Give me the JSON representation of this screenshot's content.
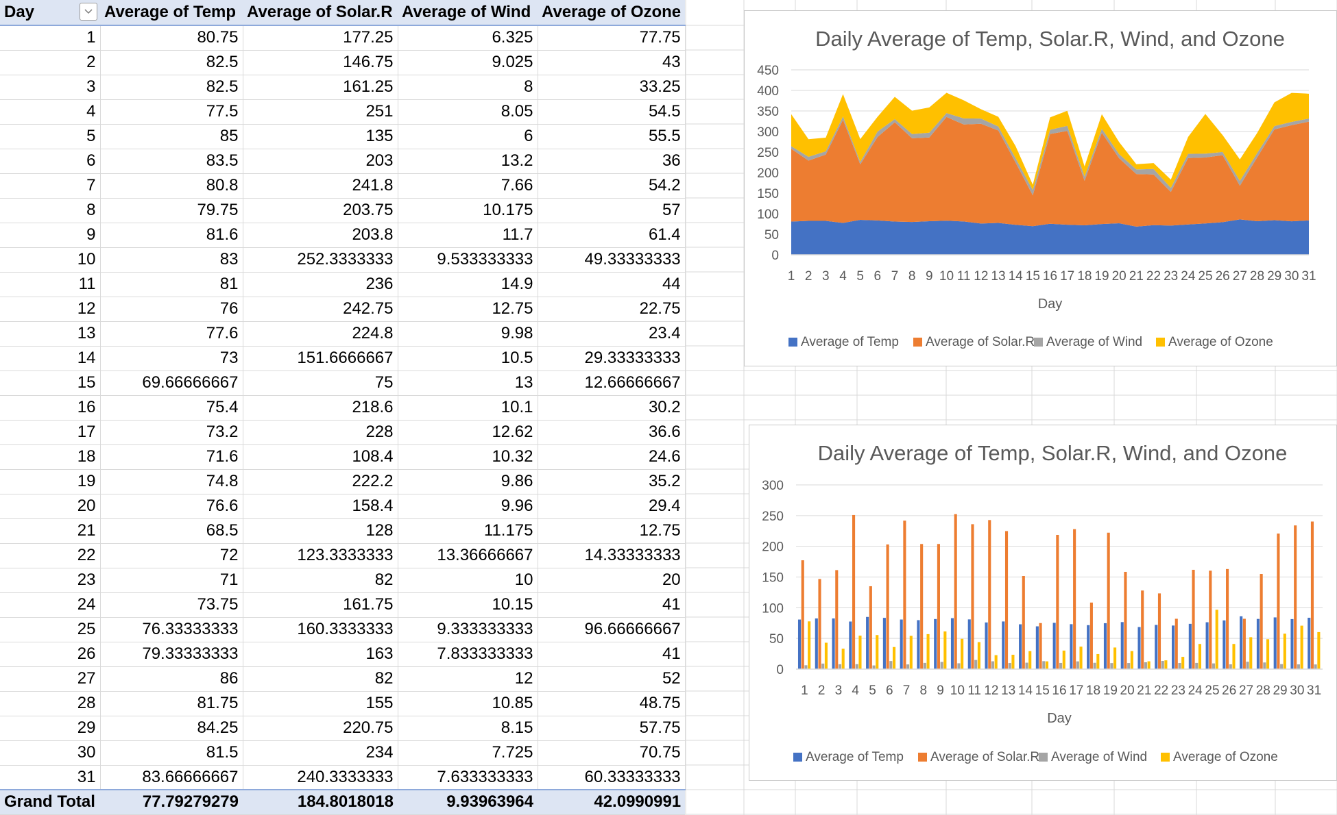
{
  "table": {
    "headers": [
      "Day",
      "Average of Temp",
      "Average of Solar.R",
      "Average of Wind",
      "Average of Ozone"
    ],
    "rows": [
      [
        "1",
        "80.75",
        "177.25",
        "6.325",
        "77.75"
      ],
      [
        "2",
        "82.5",
        "146.75",
        "9.025",
        "43"
      ],
      [
        "3",
        "82.5",
        "161.25",
        "8",
        "33.25"
      ],
      [
        "4",
        "77.5",
        "251",
        "8.05",
        "54.5"
      ],
      [
        "5",
        "85",
        "135",
        "6",
        "55.5"
      ],
      [
        "6",
        "83.5",
        "203",
        "13.2",
        "36"
      ],
      [
        "7",
        "80.8",
        "241.8",
        "7.66",
        "54.2"
      ],
      [
        "8",
        "79.75",
        "203.75",
        "10.175",
        "57"
      ],
      [
        "9",
        "81.6",
        "203.8",
        "11.7",
        "61.4"
      ],
      [
        "10",
        "83",
        "252.3333333",
        "9.533333333",
        "49.33333333"
      ],
      [
        "11",
        "81",
        "236",
        "14.9",
        "44"
      ],
      [
        "12",
        "76",
        "242.75",
        "12.75",
        "22.75"
      ],
      [
        "13",
        "77.6",
        "224.8",
        "9.98",
        "23.4"
      ],
      [
        "14",
        "73",
        "151.6666667",
        "10.5",
        "29.33333333"
      ],
      [
        "15",
        "69.66666667",
        "75",
        "13",
        "12.66666667"
      ],
      [
        "16",
        "75.4",
        "218.6",
        "10.1",
        "30.2"
      ],
      [
        "17",
        "73.2",
        "228",
        "12.62",
        "36.6"
      ],
      [
        "18",
        "71.6",
        "108.4",
        "10.32",
        "24.6"
      ],
      [
        "19",
        "74.8",
        "222.2",
        "9.86",
        "35.2"
      ],
      [
        "20",
        "76.6",
        "158.4",
        "9.96",
        "29.4"
      ],
      [
        "21",
        "68.5",
        "128",
        "11.175",
        "12.75"
      ],
      [
        "22",
        "72",
        "123.3333333",
        "13.36666667",
        "14.33333333"
      ],
      [
        "23",
        "71",
        "82",
        "10",
        "20"
      ],
      [
        "24",
        "73.75",
        "161.75",
        "10.15",
        "41"
      ],
      [
        "25",
        "76.33333333",
        "160.3333333",
        "9.333333333",
        "96.66666667"
      ],
      [
        "26",
        "79.33333333",
        "163",
        "7.833333333",
        "41"
      ],
      [
        "27",
        "86",
        "82",
        "12",
        "52"
      ],
      [
        "28",
        "81.75",
        "155",
        "10.85",
        "48.75"
      ],
      [
        "29",
        "84.25",
        "220.75",
        "8.15",
        "57.75"
      ],
      [
        "30",
        "81.5",
        "234",
        "7.725",
        "70.75"
      ],
      [
        "31",
        "83.66666667",
        "240.3333333",
        "7.633333333",
        "60.33333333"
      ]
    ],
    "grand_total": [
      "Grand Total",
      "77.79279279",
      "184.8018018",
      "9.93963964",
      "42.0990991"
    ]
  },
  "colors": {
    "temp": "#4472c4",
    "solar": "#ed7d31",
    "wind": "#a5a5a5",
    "ozone": "#ffc000",
    "header_bg": "#dde5f3",
    "grid": "#d9d9d9"
  },
  "chart_data": [
    {
      "type": "area",
      "stacked": true,
      "title": "Daily Average of Temp, Solar.R, Wind, and Ozone",
      "xlabel": "Day",
      "ylabel": "",
      "ylim": [
        0,
        450
      ],
      "yticks": [
        0,
        50,
        100,
        150,
        200,
        250,
        300,
        350,
        400,
        450
      ],
      "grid": true,
      "legend": "bottom",
      "categories": [
        "1",
        "2",
        "3",
        "4",
        "5",
        "6",
        "7",
        "8",
        "9",
        "10",
        "11",
        "12",
        "13",
        "14",
        "15",
        "16",
        "17",
        "18",
        "19",
        "20",
        "21",
        "22",
        "23",
        "24",
        "25",
        "26",
        "27",
        "28",
        "29",
        "30",
        "31"
      ],
      "series": [
        {
          "name": "Average of Temp",
          "values": [
            80.75,
            82.5,
            82.5,
            77.5,
            85,
            83.5,
            80.8,
            79.75,
            81.6,
            83,
            81,
            76,
            77.6,
            73,
            69.67,
            75.4,
            73.2,
            71.6,
            74.8,
            76.6,
            68.5,
            72,
            71,
            73.75,
            76.33,
            79.33,
            86,
            81.75,
            84.25,
            81.5,
            83.67
          ]
        },
        {
          "name": "Average of Solar.R",
          "values": [
            177.25,
            146.75,
            161.25,
            251,
            135,
            203,
            241.8,
            203.75,
            203.8,
            252.33,
            236,
            242.75,
            224.8,
            151.67,
            75,
            218.6,
            228,
            108.4,
            222.2,
            158.4,
            128,
            123.33,
            82,
            161.75,
            160.33,
            163,
            82,
            155,
            220.75,
            234,
            240.33
          ]
        },
        {
          "name": "Average of Wind",
          "values": [
            6.325,
            9.025,
            8,
            8.05,
            6,
            13.2,
            7.66,
            10.175,
            11.7,
            9.53,
            14.9,
            12.75,
            9.98,
            10.5,
            13,
            10.1,
            12.62,
            10.32,
            9.86,
            9.96,
            11.175,
            13.37,
            10,
            10.15,
            9.33,
            7.83,
            12,
            10.85,
            8.15,
            7.725,
            7.63
          ]
        },
        {
          "name": "Average of Ozone",
          "values": [
            77.75,
            43,
            33.25,
            54.5,
            55.5,
            36,
            54.2,
            57,
            61.4,
            49.33,
            44,
            22.75,
            23.4,
            29.33,
            12.67,
            30.2,
            36.6,
            24.6,
            35.2,
            29.4,
            12.75,
            14.33,
            20,
            41,
            96.67,
            41,
            52,
            48.75,
            57.75,
            70.75,
            60.33
          ]
        }
      ]
    },
    {
      "type": "bar",
      "stacked": false,
      "title": "Daily Average of Temp, Solar.R, Wind, and Ozone",
      "xlabel": "Day",
      "ylabel": "",
      "ylim": [
        0,
        300
      ],
      "yticks": [
        0,
        50,
        100,
        150,
        200,
        250,
        300
      ],
      "grid": true,
      "legend": "bottom",
      "categories": [
        "1",
        "2",
        "3",
        "4",
        "5",
        "6",
        "7",
        "8",
        "9",
        "10",
        "11",
        "12",
        "13",
        "14",
        "15",
        "16",
        "17",
        "18",
        "19",
        "20",
        "21",
        "22",
        "23",
        "24",
        "25",
        "26",
        "27",
        "28",
        "29",
        "30",
        "31"
      ],
      "series": [
        {
          "name": "Average of Temp",
          "values": [
            80.75,
            82.5,
            82.5,
            77.5,
            85,
            83.5,
            80.8,
            79.75,
            81.6,
            83,
            81,
            76,
            77.6,
            73,
            69.67,
            75.4,
            73.2,
            71.6,
            74.8,
            76.6,
            68.5,
            72,
            71,
            73.75,
            76.33,
            79.33,
            86,
            81.75,
            84.25,
            81.5,
            83.67
          ]
        },
        {
          "name": "Average of Solar.R",
          "values": [
            177.25,
            146.75,
            161.25,
            251,
            135,
            203,
            241.8,
            203.75,
            203.8,
            252.33,
            236,
            242.75,
            224.8,
            151.67,
            75,
            218.6,
            228,
            108.4,
            222.2,
            158.4,
            128,
            123.33,
            82,
            161.75,
            160.33,
            163,
            82,
            155,
            220.75,
            234,
            240.33
          ]
        },
        {
          "name": "Average of Wind",
          "values": [
            6.325,
            9.025,
            8,
            8.05,
            6,
            13.2,
            7.66,
            10.175,
            11.7,
            9.53,
            14.9,
            12.75,
            9.98,
            10.5,
            13,
            10.1,
            12.62,
            10.32,
            9.86,
            9.96,
            11.175,
            13.37,
            10,
            10.15,
            9.33,
            7.83,
            12,
            10.85,
            8.15,
            7.725,
            7.63
          ]
        },
        {
          "name": "Average of Ozone",
          "values": [
            77.75,
            43,
            33.25,
            54.5,
            55.5,
            36,
            54.2,
            57,
            61.4,
            49.33,
            44,
            22.75,
            23.4,
            29.33,
            12.67,
            30.2,
            36.6,
            24.6,
            35.2,
            29.4,
            12.75,
            14.33,
            20,
            41,
            96.67,
            41,
            52,
            48.75,
            57.75,
            70.75,
            60.33
          ]
        }
      ]
    }
  ]
}
